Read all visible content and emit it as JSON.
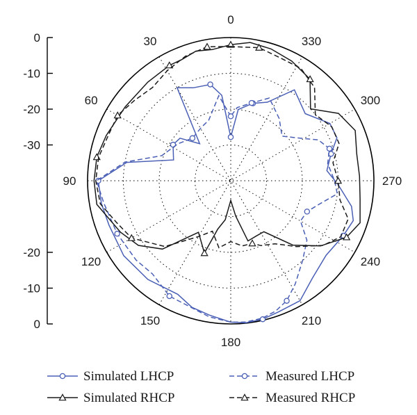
{
  "chart_data": {
    "type": "polar-line",
    "angle_unit": "degrees",
    "angle_ticks": [
      0,
      30,
      60,
      90,
      120,
      150,
      180,
      210,
      240,
      270,
      300,
      330
    ],
    "angle_direction": "counterclockwise from top",
    "radial_ticks_top": [
      "0",
      "-10",
      "-20",
      "-30"
    ],
    "radial_ticks_bottom": [
      "-20",
      "-10",
      "0"
    ],
    "r_range": [
      -40,
      0
    ],
    "grid": true,
    "legend_position": "bottom",
    "series": [
      {
        "name": "Simulated LHCP",
        "color": "#4a5fb5",
        "dash": "solid",
        "marker": "circle",
        "points": [
          [
            0,
            -27.8
          ],
          [
            6,
            -16
          ],
          [
            12,
            -12.5
          ],
          [
            22,
            -12
          ],
          [
            30,
            -10
          ],
          [
            40,
            -26.5
          ],
          [
            50,
            -21.5
          ],
          [
            58,
            -21
          ],
          [
            70,
            -23
          ],
          [
            80,
            -10.5
          ],
          [
            90,
            -3
          ],
          [
            100,
            -3.3
          ],
          [
            110,
            -3.8
          ],
          [
            125,
            -3.5
          ],
          [
            140,
            -4
          ],
          [
            155,
            -5
          ],
          [
            163,
            -3
          ],
          [
            171,
            -2
          ],
          [
            180,
            -0.5
          ],
          [
            186,
            -0.1
          ],
          [
            193,
            -0.3
          ],
          [
            200,
            -1
          ],
          [
            210,
            -1.3
          ],
          [
            220,
            -4.5
          ],
          [
            232,
            -6.2
          ],
          [
            244,
            -5
          ],
          [
            252,
            -4
          ],
          [
            258,
            -5.5
          ],
          [
            268,
            -10
          ],
          [
            276,
            -13
          ],
          [
            285,
            -11
          ],
          [
            292,
            -8
          ],
          [
            300,
            -8
          ],
          [
            312,
            -12
          ],
          [
            325,
            -9
          ],
          [
            335,
            -15.8
          ],
          [
            344,
            -17.5
          ],
          [
            354,
            -20
          ]
        ]
      },
      {
        "name": "Measured LHCP",
        "color": "#4a5fb5",
        "dash": "dashed",
        "marker": "circle",
        "points": [
          [
            0,
            -22
          ],
          [
            8,
            -16
          ],
          [
            20,
            -22
          ],
          [
            29,
            -23
          ],
          [
            42,
            -24
          ],
          [
            55,
            -22
          ],
          [
            70,
            -19.5
          ],
          [
            80,
            -10
          ],
          [
            90,
            -2.5
          ],
          [
            100,
            -4
          ],
          [
            115,
            -5
          ],
          [
            130,
            -5.5
          ],
          [
            140,
            -6
          ],
          [
            152,
            -3.5
          ],
          [
            162,
            -3
          ],
          [
            171,
            -1.5
          ],
          [
            180,
            -0.5
          ],
          [
            186,
            -0.3
          ],
          [
            193,
            -0.6
          ],
          [
            199,
            -1.5
          ],
          [
            205,
            -3
          ],
          [
            212,
            -6
          ],
          [
            222,
            -10
          ],
          [
            232,
            -13
          ],
          [
            240,
            -17.5
          ],
          [
            248,
            -17
          ],
          [
            255,
            -14.5
          ],
          [
            263,
            -10
          ],
          [
            270,
            -11
          ],
          [
            280,
            -12.5
          ],
          [
            288,
            -11
          ],
          [
            295,
            -13
          ],
          [
            303,
            -18
          ],
          [
            311,
            -21
          ],
          [
            322,
            -18
          ],
          [
            335,
            -14.5
          ],
          [
            345,
            -17.5
          ],
          [
            355,
            -19.5
          ]
        ]
      },
      {
        "name": "Simulated RHCP",
        "color": "#1a1a1a",
        "dash": "solid",
        "marker": "triangle",
        "points": [
          [
            0,
            -2
          ],
          [
            8,
            -3
          ],
          [
            15,
            -2.5
          ],
          [
            22,
            -3.5
          ],
          [
            28,
            -3.5
          ],
          [
            40,
            -4
          ],
          [
            55,
            -4
          ],
          [
            70,
            -3
          ],
          [
            80,
            -2
          ],
          [
            90,
            -1.8
          ],
          [
            100,
            -2
          ],
          [
            115,
            -6
          ],
          [
            125,
            -8.5
          ],
          [
            135,
            -13
          ],
          [
            148,
            -23
          ],
          [
            160,
            -18.5
          ],
          [
            165,
            -26
          ],
          [
            172,
            -29
          ],
          [
            180,
            -34.5
          ],
          [
            188,
            -30
          ],
          [
            196,
            -22.5
          ],
          [
            205,
            -23
          ],
          [
            213,
            -23
          ],
          [
            224,
            -15
          ],
          [
            234,
            -9
          ],
          [
            244,
            -4
          ],
          [
            252,
            -2
          ],
          [
            262,
            -3.5
          ],
          [
            272,
            -4
          ],
          [
            282,
            -4
          ],
          [
            292,
            -2.5
          ],
          [
            302,
            -4.5
          ],
          [
            312,
            -10
          ],
          [
            322,
            -4
          ],
          [
            333,
            -2.5
          ],
          [
            343,
            -1.5
          ],
          [
            352,
            -1
          ]
        ]
      },
      {
        "name": "Measured RHCP",
        "color": "#1a1a1a",
        "dash": "dashed",
        "marker": "triangle",
        "points": [
          [
            0,
            -2.5
          ],
          [
            10,
            -2
          ],
          [
            20,
            -3
          ],
          [
            30,
            -4.5
          ],
          [
            40,
            -6
          ],
          [
            50,
            -5
          ],
          [
            60,
            -3.5
          ],
          [
            70,
            -3.5
          ],
          [
            80,
            -2.5
          ],
          [
            90,
            -2.3
          ],
          [
            100,
            -3
          ],
          [
            110,
            -6
          ],
          [
            120,
            -8
          ],
          [
            135,
            -14
          ],
          [
            150,
            -22
          ],
          [
            160,
            -25
          ],
          [
            170,
            -21
          ],
          [
            180,
            -23
          ],
          [
            190,
            -21.5
          ],
          [
            199,
            -21.5
          ],
          [
            205,
            -20
          ],
          [
            215,
            -18.5
          ],
          [
            225,
            -14
          ],
          [
            235,
            -8.5
          ],
          [
            243,
            -5.5
          ],
          [
            252,
            -5.5
          ],
          [
            260,
            -9
          ],
          [
            270,
            -10
          ],
          [
            280,
            -11
          ],
          [
            289,
            -8
          ],
          [
            298,
            -8
          ],
          [
            308,
            -10
          ],
          [
            318,
            -5
          ],
          [
            328,
            -3
          ],
          [
            338,
            -3
          ],
          [
            348,
            -2
          ],
          [
            354,
            -2.5
          ]
        ]
      }
    ]
  },
  "legend": [
    {
      "label": "Simulated LHCP",
      "color": "#4a5fb5",
      "dash": "solid",
      "marker": "circle"
    },
    {
      "label": "Measured LHCP",
      "color": "#4a5fb5",
      "dash": "dashed",
      "marker": "circle"
    },
    {
      "label": "Simulated RHCP",
      "color": "#1a1a1a",
      "dash": "solid",
      "marker": "triangle"
    },
    {
      "label": "Measured RHCP",
      "color": "#1a1a1a",
      "dash": "dashed",
      "marker": "triangle"
    }
  ]
}
